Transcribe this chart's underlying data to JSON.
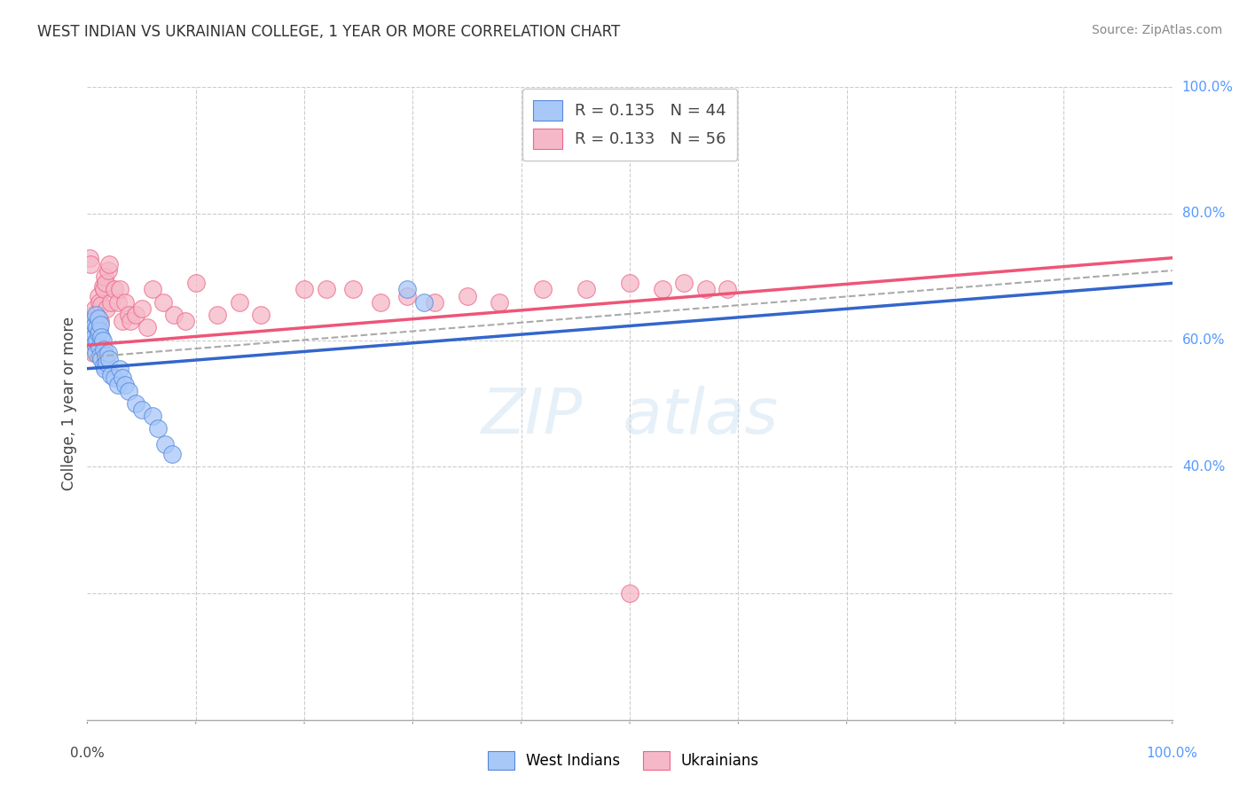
{
  "title": "WEST INDIAN VS UKRAINIAN COLLEGE, 1 YEAR OR MORE CORRELATION CHART",
  "source": "Source: ZipAtlas.com",
  "ylabel": "College, 1 year or more",
  "blue_color": "#a8c8f8",
  "pink_color": "#f5b8c8",
  "blue_edge_color": "#5588dd",
  "pink_edge_color": "#ee6688",
  "blue_line_color": "#3366cc",
  "pink_line_color": "#ee5577",
  "dash_line_color": "#aaaaaa",
  "grid_color": "#cccccc",
  "right_axis_color": "#5599ff",
  "background_color": "#ffffff",
  "west_indian_x": [
    0.002,
    0.003,
    0.004,
    0.005,
    0.005,
    0.006,
    0.006,
    0.007,
    0.007,
    0.008,
    0.008,
    0.009,
    0.009,
    0.01,
    0.01,
    0.011,
    0.011,
    0.012,
    0.012,
    0.013,
    0.013,
    0.014,
    0.015,
    0.015,
    0.016,
    0.017,
    0.018,
    0.019,
    0.02,
    0.022,
    0.025,
    0.028,
    0.03,
    0.032,
    0.035,
    0.038,
    0.045,
    0.05,
    0.06,
    0.065,
    0.072,
    0.078,
    0.295,
    0.31
  ],
  "west_indian_y": [
    0.62,
    0.61,
    0.6,
    0.63,
    0.59,
    0.615,
    0.605,
    0.625,
    0.595,
    0.64,
    0.58,
    0.62,
    0.6,
    0.635,
    0.61,
    0.615,
    0.59,
    0.625,
    0.575,
    0.605,
    0.57,
    0.6,
    0.56,
    0.585,
    0.555,
    0.575,
    0.565,
    0.58,
    0.57,
    0.545,
    0.54,
    0.53,
    0.555,
    0.54,
    0.53,
    0.52,
    0.5,
    0.49,
    0.48,
    0.46,
    0.435,
    0.42,
    0.68,
    0.66
  ],
  "ukrainian_x": [
    0.002,
    0.003,
    0.004,
    0.005,
    0.005,
    0.006,
    0.007,
    0.008,
    0.008,
    0.009,
    0.01,
    0.011,
    0.012,
    0.013,
    0.014,
    0.015,
    0.016,
    0.017,
    0.018,
    0.019,
    0.02,
    0.022,
    0.025,
    0.028,
    0.03,
    0.032,
    0.035,
    0.038,
    0.04,
    0.045,
    0.05,
    0.055,
    0.06,
    0.07,
    0.08,
    0.09,
    0.1,
    0.12,
    0.14,
    0.16,
    0.2,
    0.22,
    0.245,
    0.27,
    0.295,
    0.32,
    0.35,
    0.38,
    0.42,
    0.46,
    0.5,
    0.53,
    0.55,
    0.57,
    0.59,
    0.5
  ],
  "ukrainian_y": [
    0.73,
    0.72,
    0.6,
    0.58,
    0.64,
    0.61,
    0.65,
    0.635,
    0.595,
    0.625,
    0.67,
    0.66,
    0.63,
    0.655,
    0.685,
    0.68,
    0.7,
    0.69,
    0.65,
    0.71,
    0.72,
    0.66,
    0.68,
    0.66,
    0.68,
    0.63,
    0.66,
    0.64,
    0.63,
    0.64,
    0.65,
    0.62,
    0.68,
    0.66,
    0.64,
    0.63,
    0.69,
    0.64,
    0.66,
    0.64,
    0.68,
    0.68,
    0.68,
    0.66,
    0.67,
    0.66,
    0.67,
    0.66,
    0.68,
    0.68,
    0.2,
    0.68,
    0.69,
    0.68,
    0.68,
    0.69
  ],
  "xlim": [
    0.0,
    1.0
  ],
  "ylim": [
    0.0,
    1.0
  ],
  "blue_line_x0": 0.0,
  "blue_line_y0": 0.555,
  "blue_line_x1": 1.0,
  "blue_line_y1": 0.69,
  "pink_line_x0": 0.0,
  "pink_line_y0": 0.592,
  "pink_line_x1": 1.0,
  "pink_line_y1": 0.73,
  "dash_line_x0": 0.0,
  "dash_line_y0": 0.573,
  "dash_line_x1": 1.0,
  "dash_line_y1": 0.71
}
